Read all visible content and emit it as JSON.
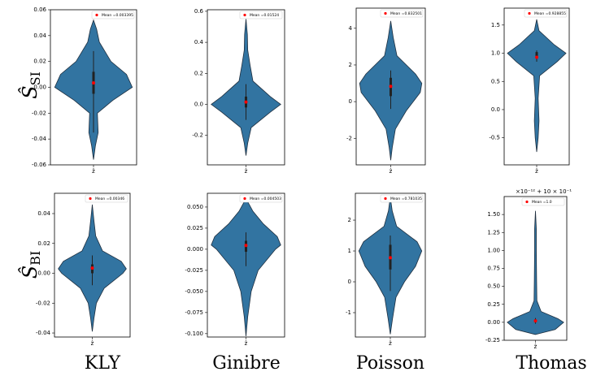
{
  "row_labels": [
    {
      "symbol": "Ŝ",
      "subscript": "SI"
    },
    {
      "symbol": "Ŝ",
      "subscript": "BI"
    }
  ],
  "column_labels": [
    "KLY",
    "Ginibre",
    "Poisson",
    "Thomas"
  ],
  "chart_data": [
    {
      "type": "violin",
      "categories": [
        "ẑ"
      ],
      "color": "#3274a1",
      "ylim": [
        -0.06,
        0.06
      ],
      "yticks": [
        -0.06,
        -0.04,
        -0.02,
        {
          "value": 0,
          "label": "0.00"
        },
        0.02,
        0.04,
        0.06
      ],
      "profile": {
        "y": [
          -0.056,
          -0.045,
          -0.035,
          -0.02,
          -0.01,
          0,
          0.01,
          0.02,
          0.035,
          0.045,
          0.052
        ],
        "width": [
          0,
          0.05,
          0.12,
          0.1,
          0.5,
          1,
          0.85,
          0.45,
          0.15,
          0.08,
          0
        ]
      },
      "whiskers": [
        -0.035,
        0.028
      ],
      "quartiles": [
        -0.005,
        0.012
      ],
      "series": [
        {
          "name": "Mean =0.003395",
          "color": "#ff0000",
          "mean": 0.003395
        }
      ]
    },
    {
      "type": "violin",
      "categories": [
        "ẑ"
      ],
      "color": "#3274a1",
      "ylim": [
        -0.39,
        0.61
      ],
      "yticks": [
        -0.2,
        {
          "value": 0,
          "label": "0.0"
        },
        0.2,
        0.4,
        0.6
      ],
      "profile": {
        "y": [
          -0.33,
          -0.25,
          -0.15,
          -0.05,
          0,
          0.05,
          0.15,
          0.25,
          0.35,
          0.45,
          0.55
        ],
        "width": [
          0,
          0.05,
          0.15,
          0.7,
          1,
          0.7,
          0.2,
          0.12,
          0.05,
          0.04,
          0
        ]
      },
      "whiskers": [
        -0.1,
        0.13
      ],
      "quartiles": [
        -0.02,
        0.05
      ],
      "series": [
        {
          "name": "Mean =0.01524",
          "color": "#ff0000",
          "mean": 0.01524
        }
      ]
    },
    {
      "type": "violin",
      "categories": [
        "ẑ"
      ],
      "color": "#3274a1",
      "ylim": [
        -3.45,
        5.1
      ],
      "yticks": [
        -2,
        0,
        2,
        4
      ],
      "profile": {
        "y": [
          -3.2,
          -2.5,
          -1.5,
          -0.5,
          0.5,
          1,
          1.5,
          2.5,
          3.5,
          4.4
        ],
        "width": [
          0,
          0.05,
          0.15,
          0.5,
          0.95,
          1,
          0.8,
          0.2,
          0.08,
          0
        ]
      },
      "whiskers": [
        -0.4,
        1.7
      ],
      "quartiles": [
        0.3,
        1.3
      ],
      "series": [
        {
          "name": "Mean =0.832501",
          "color": "#ff0000",
          "mean": 0.832501
        }
      ]
    },
    {
      "type": "violin",
      "categories": [
        "ẑ"
      ],
      "color": "#3274a1",
      "ylim": [
        -0.98,
        1.8
      ],
      "yticks": [
        -0.5,
        {
          "value": 0,
          "label": "0.0"
        },
        0.5,
        {
          "value": 1,
          "label": "1.0"
        },
        1.5
      ],
      "profile": {
        "y": [
          -0.75,
          -0.5,
          -0.2,
          0.2,
          0.6,
          0.85,
          1,
          1.15,
          1.4,
          1.6
        ],
        "width": [
          0,
          0.05,
          0.08,
          0.05,
          0.1,
          0.7,
          1,
          0.6,
          0.08,
          0
        ]
      },
      "whiskers": [
        0.85,
        1.05
      ],
      "quartiles": [
        0.95,
        1.02
      ],
      "series": [
        {
          "name": "Mean =0.928855",
          "color": "#ff0000",
          "mean": 0.928855
        }
      ]
    },
    {
      "type": "violin",
      "categories": [
        "ẑ"
      ],
      "color": "#3274a1",
      "ylim": [
        -0.0427,
        0.0536
      ],
      "yticks": [
        -0.04,
        -0.02,
        {
          "value": 0,
          "label": "0.00"
        },
        0.02,
        0.04
      ],
      "profile": {
        "y": [
          -0.039,
          -0.03,
          -0.02,
          -0.01,
          0,
          0.003,
          0.008,
          0.015,
          0.025,
          0.035,
          0.046
        ],
        "width": [
          0,
          0.05,
          0.12,
          0.35,
          0.9,
          1,
          0.85,
          0.3,
          0.1,
          0.05,
          0
        ]
      },
      "whiskers": [
        -0.008,
        0.012
      ],
      "quartiles": [
        0,
        0.006
      ],
      "series": [
        {
          "name": "Mean =0.00346",
          "color": "#ff0000",
          "mean": 0.00346
        }
      ]
    },
    {
      "type": "violin",
      "categories": [
        "ẑ"
      ],
      "color": "#3274a1",
      "ylim": [
        -0.104,
        0.0663
      ],
      "yticks": [
        {
          "value": -0.1,
          "label": "-0.100"
        },
        -0.075,
        {
          "value": -0.05,
          "label": "-0.050"
        },
        -0.025,
        {
          "value": 0,
          "label": "0.000"
        },
        0.025,
        {
          "value": 0.05,
          "label": "0.050"
        }
      ],
      "profile": {
        "y": [
          -0.103,
          -0.08,
          -0.05,
          -0.025,
          0,
          0.005,
          0.015,
          0.03,
          0.045,
          0.06
        ],
        "width": [
          0,
          0.05,
          0.15,
          0.35,
          0.85,
          1,
          0.9,
          0.5,
          0.2,
          0
        ]
      },
      "whiskers": [
        -0.02,
        0.02
      ],
      "quartiles": [
        -0.003,
        0.01
      ],
      "series": [
        {
          "name": "Mean =0.004503",
          "color": "#ff0000",
          "mean": 0.004503
        }
      ]
    },
    {
      "type": "violin",
      "categories": [
        "ẑ"
      ],
      "color": "#3274a1",
      "ylim": [
        -1.79,
        2.87
      ],
      "yticks": [
        -1,
        0,
        1,
        2
      ],
      "profile": {
        "y": [
          -1.7,
          -1.2,
          -0.5,
          0,
          0.5,
          1,
          1.3,
          1.8,
          2.3,
          2.75
        ],
        "width": [
          0,
          0.07,
          0.18,
          0.45,
          0.8,
          1,
          0.85,
          0.2,
          0.06,
          0
        ]
      },
      "whiskers": [
        -0.3,
        1.5
      ],
      "quartiles": [
        0.4,
        1.2
      ],
      "series": [
        {
          "name": "Mean =0.781035",
          "color": "#ff0000",
          "mean": 0.781035
        }
      ]
    },
    {
      "type": "violin",
      "categories": [
        "ẑ"
      ],
      "color": "#3274a1",
      "ylim": [
        -0.25,
        1.75
      ],
      "offset_text": "×10⁻¹² + 10 × 10⁻¹",
      "yticks": [
        -0.25,
        {
          "value": 0,
          "label": "0.00"
        },
        0.25,
        {
          "value": 0.5,
          "label": "0.50"
        },
        0.75,
        {
          "value": 1,
          "label": "1.00"
        },
        1.25,
        {
          "value": 1.5,
          "label": "1.50"
        }
      ],
      "profile": {
        "y": [
          -0.17,
          -0.1,
          0,
          0.05,
          0.15,
          0.3,
          0.6,
          1,
          1.3,
          1.55
        ],
        "width": [
          0,
          0.7,
          1,
          0.8,
          0.2,
          0.05,
          0.04,
          0.03,
          0.03,
          0
        ]
      },
      "whiskers": [
        -0.02,
        0.06
      ],
      "quartiles": [
        0,
        0.04
      ],
      "series": [
        {
          "name": "Mean =1.0",
          "color": "#ff0000",
          "mean": 0.02
        }
      ]
    }
  ]
}
